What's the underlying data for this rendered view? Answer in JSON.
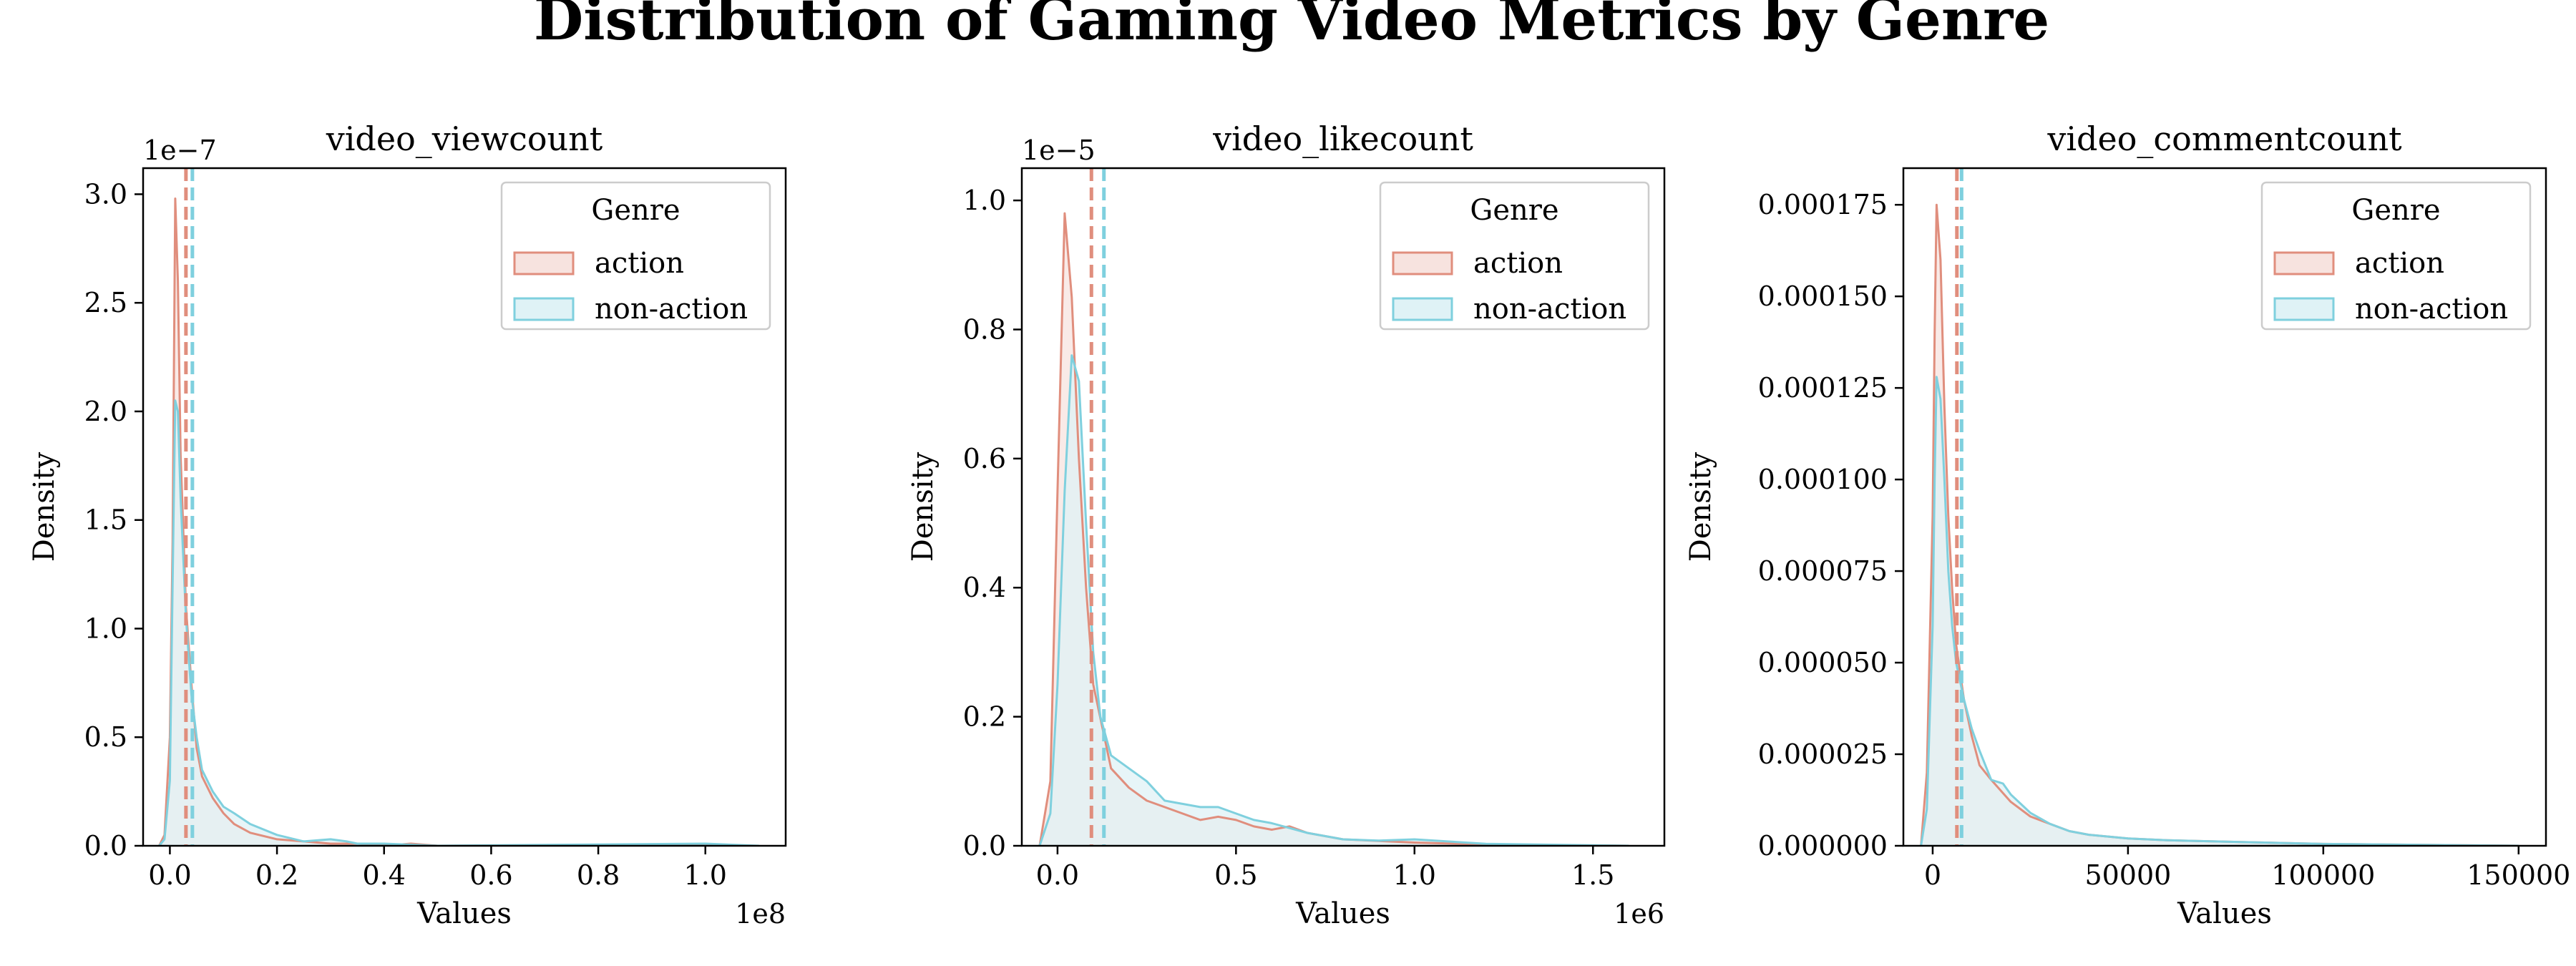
{
  "title": "Distribution of Gaming Video Metrics by Genre",
  "colors": {
    "action": "#e08e7d",
    "non_action": "#7fd0de",
    "action_fill": "#f7e3df",
    "non_action_fill": "#dff2f6",
    "overlap_fill": "#dde3e3"
  },
  "chart_data": [
    {
      "type": "area",
      "title": "video_viewcount",
      "xlabel": "Values",
      "ylabel": "Density",
      "x_offset_label": "1e8",
      "y_offset_label": "1e−7",
      "xlim": [
        -0.05,
        1.15
      ],
      "ylim": [
        0,
        3.12
      ],
      "xticks": [
        0.0,
        0.2,
        0.4,
        0.6,
        0.8,
        1.0
      ],
      "xtick_labels": [
        "0.0",
        "0.2",
        "0.4",
        "0.6",
        "0.8",
        "1.0"
      ],
      "yticks": [
        0.0,
        0.5,
        1.0,
        1.5,
        2.0,
        2.5,
        3.0
      ],
      "ytick_labels": [
        "0.0",
        "0.5",
        "1.0",
        "1.5",
        "2.0",
        "2.5",
        "3.0"
      ],
      "legend": {
        "title": "Genre",
        "position": "top-right",
        "entries": [
          "action",
          "non-action"
        ]
      },
      "mean_lines": [
        {
          "series": "action",
          "x": 0.03
        },
        {
          "series": "non-action",
          "x": 0.042
        }
      ],
      "series": [
        {
          "name": "action",
          "x": [
            -0.02,
            -0.01,
            0.0,
            0.005,
            0.01,
            0.015,
            0.02,
            0.03,
            0.04,
            0.05,
            0.06,
            0.08,
            0.1,
            0.12,
            0.15,
            0.2,
            0.25,
            0.3,
            0.35,
            0.4,
            0.45,
            0.5,
            0.6,
            1.1
          ],
          "y": [
            0,
            0.05,
            0.5,
            1.4,
            2.98,
            2.6,
            1.8,
            1.1,
            0.75,
            0.45,
            0.32,
            0.22,
            0.15,
            0.1,
            0.06,
            0.03,
            0.02,
            0.01,
            0.01,
            0.0,
            0.01,
            0.0,
            0,
            0
          ]
        },
        {
          "name": "non-action",
          "x": [
            -0.02,
            -0.01,
            0.0,
            0.005,
            0.01,
            0.015,
            0.02,
            0.03,
            0.04,
            0.05,
            0.06,
            0.08,
            0.1,
            0.12,
            0.15,
            0.2,
            0.25,
            0.3,
            0.33,
            0.35,
            0.4,
            0.5,
            1.0,
            1.1
          ],
          "y": [
            0,
            0.03,
            0.3,
            1.2,
            2.05,
            2.0,
            1.6,
            1.05,
            0.7,
            0.5,
            0.35,
            0.25,
            0.18,
            0.15,
            0.1,
            0.05,
            0.02,
            0.03,
            0.02,
            0.01,
            0.01,
            0.0,
            0.01,
            0
          ]
        }
      ]
    },
    {
      "type": "area",
      "title": "video_likecount",
      "xlabel": "Values",
      "ylabel": "Density",
      "x_offset_label": "1e6",
      "y_offset_label": "1e−5",
      "xlim": [
        -0.1,
        1.7
      ],
      "ylim": [
        0,
        1.05
      ],
      "xticks": [
        0.0,
        0.5,
        1.0,
        1.5
      ],
      "xtick_labels": [
        "0.0",
        "0.5",
        "1.0",
        "1.5"
      ],
      "yticks": [
        0.0,
        0.2,
        0.4,
        0.6,
        0.8,
        1.0
      ],
      "ytick_labels": [
        "0.0",
        "0.2",
        "0.4",
        "0.6",
        "0.8",
        "1.0"
      ],
      "legend": {
        "title": "Genre",
        "position": "top-right",
        "entries": [
          "action",
          "non-action"
        ]
      },
      "mean_lines": [
        {
          "series": "action",
          "x": 0.095
        },
        {
          "series": "non-action",
          "x": 0.13
        }
      ],
      "series": [
        {
          "name": "action",
          "x": [
            -0.05,
            -0.02,
            0.0,
            0.02,
            0.04,
            0.06,
            0.08,
            0.1,
            0.15,
            0.2,
            0.25,
            0.3,
            0.35,
            0.4,
            0.45,
            0.5,
            0.55,
            0.6,
            0.65,
            0.7,
            0.8,
            1.0,
            1.2,
            1.6
          ],
          "y": [
            0,
            0.1,
            0.55,
            0.98,
            0.85,
            0.6,
            0.4,
            0.25,
            0.12,
            0.09,
            0.07,
            0.06,
            0.05,
            0.04,
            0.045,
            0.04,
            0.03,
            0.025,
            0.03,
            0.02,
            0.01,
            0.005,
            0.002,
            0
          ]
        },
        {
          "name": "non-action",
          "x": [
            -0.05,
            -0.02,
            0.0,
            0.02,
            0.04,
            0.06,
            0.08,
            0.1,
            0.12,
            0.15,
            0.2,
            0.25,
            0.3,
            0.35,
            0.4,
            0.45,
            0.5,
            0.55,
            0.6,
            0.7,
            0.8,
            0.9,
            1.0,
            1.2,
            1.6
          ],
          "y": [
            0,
            0.05,
            0.25,
            0.55,
            0.76,
            0.72,
            0.5,
            0.3,
            0.2,
            0.14,
            0.12,
            0.1,
            0.07,
            0.065,
            0.06,
            0.06,
            0.05,
            0.04,
            0.035,
            0.02,
            0.01,
            0.008,
            0.01,
            0.003,
            0
          ]
        }
      ]
    },
    {
      "type": "area",
      "title": "video_commentcount",
      "xlabel": "Values",
      "ylabel": "Density",
      "xlim": [
        -7500,
        157000
      ],
      "ylim": [
        0,
        0.000185
      ],
      "xticks": [
        0,
        50000,
        100000,
        150000
      ],
      "xtick_labels": [
        "0",
        "50000",
        "100000",
        "150000"
      ],
      "yticks": [
        0,
        2.5e-05,
        5e-05,
        7.5e-05,
        0.0001,
        0.000125,
        0.00015,
        0.000175
      ],
      "ytick_labels": [
        "0.000000",
        "0.000025",
        "0.000050",
        "0.000075",
        "0.000100",
        "0.000125",
        "0.000150",
        "0.000175"
      ],
      "legend": {
        "title": "Genre",
        "position": "top-right",
        "entries": [
          "action",
          "non-action"
        ]
      },
      "mean_lines": [
        {
          "series": "action",
          "x": 6200
        },
        {
          "series": "non-action",
          "x": 7400
        }
      ],
      "series": [
        {
          "name": "action",
          "x": [
            -3000,
            -1500,
            0,
            500,
            1000,
            2000,
            3000,
            4000,
            5000,
            6000,
            8000,
            10000,
            12000,
            15000,
            20000,
            25000,
            30000,
            35000,
            40000,
            50000,
            60000,
            80000,
            100000,
            150000
          ],
          "y": [
            0,
            2e-05,
            9e-05,
            0.00014,
            0.000175,
            0.00016,
            0.00012,
            9e-05,
            7e-05,
            5.5e-05,
            4e-05,
            3e-05,
            2.2e-05,
            1.8e-05,
            1.2e-05,
            8e-06,
            6e-06,
            4e-06,
            3e-06,
            2e-06,
            1.5e-06,
            1e-06,
            5e-07,
            0
          ]
        },
        {
          "name": "non-action",
          "x": [
            -3000,
            -1500,
            0,
            500,
            1000,
            2000,
            3000,
            4000,
            5000,
            6000,
            8000,
            10000,
            12000,
            15000,
            18000,
            20000,
            25000,
            30000,
            35000,
            40000,
            50000,
            60000,
            80000,
            100000,
            150000
          ],
          "y": [
            0,
            1e-05,
            6e-05,
            0.0001,
            0.000128,
            0.000122,
            0.0001,
            7.5e-05,
            6e-05,
            5e-05,
            4e-05,
            3.2e-05,
            2.6e-05,
            1.8e-05,
            1.7e-05,
            1.4e-05,
            9e-06,
            6e-06,
            4e-06,
            3e-06,
            2e-06,
            1.5e-06,
            1e-06,
            5e-07,
            0
          ]
        }
      ]
    }
  ]
}
